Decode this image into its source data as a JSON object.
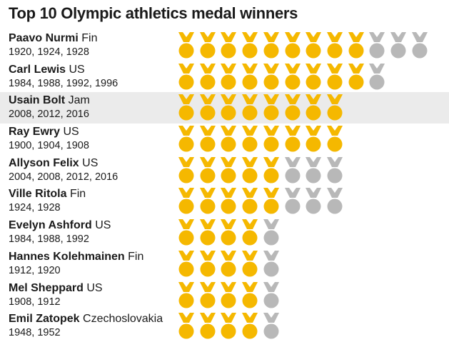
{
  "title": "Top 10 Olympic athletics medal winners",
  "colors": {
    "gold": "#f5b800",
    "silver": "#b8b8b8",
    "highlight": "#ebebeb"
  },
  "icons": {
    "gold_medal": "gold-medal-icon",
    "silver_medal": "silver-medal-icon"
  },
  "chart_data": {
    "type": "table",
    "title": "Top 10 Olympic athletics medal winners",
    "highlight_row": 2,
    "rows": [
      {
        "name": "Paavo Nurmi",
        "country": "Fin",
        "years": "1920, 1924, 1928",
        "gold": 9,
        "silver": 3
      },
      {
        "name": "Carl Lewis",
        "country": "US",
        "years": "1984, 1988, 1992, 1996",
        "gold": 9,
        "silver": 1
      },
      {
        "name": "Usain Bolt",
        "country": "Jam",
        "years": "2008, 2012, 2016",
        "gold": 8,
        "silver": 0
      },
      {
        "name": "Ray Ewry",
        "country": "US",
        "years": "1900, 1904, 1908",
        "gold": 8,
        "silver": 0
      },
      {
        "name": "Allyson Felix",
        "country": "US",
        "years": "2004, 2008, 2012, 2016",
        "gold": 5,
        "silver": 3
      },
      {
        "name": "Ville Ritola",
        "country": "Fin",
        "years": "1924, 1928",
        "gold": 5,
        "silver": 3
      },
      {
        "name": "Evelyn Ashford",
        "country": "US",
        "years": "1984, 1988, 1992",
        "gold": 4,
        "silver": 1
      },
      {
        "name": "Hannes Kolehmainen",
        "country": "Fin",
        "years": "1912, 1920",
        "gold": 4,
        "silver": 1
      },
      {
        "name": "Mel Sheppard",
        "country": "US",
        "years": "1908, 1912",
        "gold": 4,
        "silver": 1
      },
      {
        "name": "Emil Zatopek",
        "country": "Czechoslovakia",
        "years": "1948, 1952",
        "gold": 4,
        "silver": 1
      }
    ]
  }
}
